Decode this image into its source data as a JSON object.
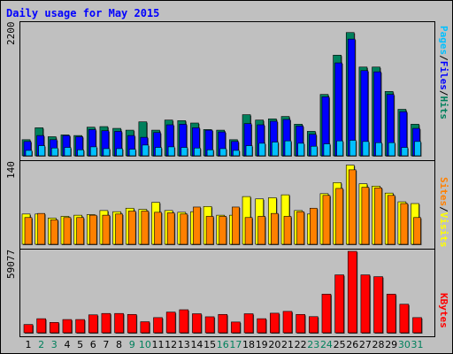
{
  "title": "Daily usage for May 2015",
  "colors": {
    "hits": "#00805c",
    "files": "#0000ff",
    "pages": "#00c0ff",
    "visits": "#ffff00",
    "sites": "#ff8000",
    "kbytes": "#ff0000",
    "weekday_label": "#000000",
    "weekend_label": "#00805c",
    "background": "#c0c0c0"
  },
  "labels": {
    "top_max": "2200",
    "mid_max": "140",
    "bottom_max": "59077",
    "right_top": [
      "Pages",
      "/",
      "Files",
      "/",
      "Hits"
    ],
    "right_mid": [
      "Sites",
      "/",
      "Visits"
    ],
    "right_bottom": [
      "KBytes"
    ]
  },
  "chart_data": [
    {
      "type": "bar",
      "panel": "hits-files-pages",
      "categories": [
        "1",
        "2",
        "3",
        "4",
        "5",
        "6",
        "7",
        "8",
        "9",
        "10",
        "11",
        "12",
        "13",
        "14",
        "15",
        "16",
        "17",
        "18",
        "19",
        "20",
        "21",
        "22",
        "23",
        "24",
        "25",
        "26",
        "27",
        "28",
        "29",
        "30",
        "31"
      ],
      "weekend_days": [
        2,
        3,
        9,
        10,
        16,
        17,
        23,
        24,
        30,
        31
      ],
      "ylim": [
        0,
        2200
      ],
      "series": [
        {
          "name": "Hits",
          "values": [
            270,
            470,
            320,
            350,
            340,
            480,
            490,
            460,
            430,
            570,
            430,
            600,
            590,
            550,
            440,
            430,
            270,
            690,
            600,
            620,
            660,
            530,
            410,
            1030,
            1690,
            2070,
            1490,
            1490,
            1080,
            780,
            530
          ]
        },
        {
          "name": "Files",
          "values": [
            240,
            340,
            270,
            340,
            320,
            440,
            420,
            410,
            340,
            310,
            390,
            520,
            530,
            470,
            430,
            400,
            240,
            540,
            520,
            580,
            610,
            500,
            360,
            990,
            1560,
            1960,
            1430,
            1410,
            1030,
            740,
            460
          ]
        },
        {
          "name": "Pages",
          "values": [
            90,
            170,
            130,
            140,
            100,
            150,
            120,
            120,
            110,
            180,
            140,
            150,
            140,
            130,
            100,
            120,
            90,
            170,
            210,
            230,
            250,
            210,
            160,
            200,
            250,
            260,
            240,
            220,
            220,
            140,
            240
          ]
        }
      ]
    },
    {
      "type": "bar",
      "panel": "visits-sites",
      "categories": [
        "1",
        "2",
        "3",
        "4",
        "5",
        "6",
        "7",
        "8",
        "9",
        "10",
        "11",
        "12",
        "13",
        "14",
        "15",
        "16",
        "17",
        "18",
        "19",
        "20",
        "21",
        "22",
        "23",
        "24",
        "25",
        "26",
        "27",
        "28",
        "29",
        "30",
        "31"
      ],
      "ylim": [
        0,
        140
      ],
      "series": [
        {
          "name": "Visits",
          "values": [
            52,
            52,
            45,
            48,
            50,
            51,
            58,
            56,
            62,
            60,
            72,
            58,
            55,
            56,
            65,
            50,
            50,
            82,
            78,
            80,
            85,
            58,
            52,
            87,
            106,
            136,
            104,
            100,
            88,
            73,
            70
          ]
        },
        {
          "name": "Sites",
          "values": [
            46,
            53,
            42,
            46,
            46,
            50,
            50,
            52,
            57,
            57,
            55,
            54,
            52,
            64,
            48,
            48,
            64,
            46,
            48,
            53,
            48,
            56,
            62,
            84,
            96,
            128,
            98,
            97,
            84,
            70,
            46
          ]
        }
      ]
    },
    {
      "type": "bar",
      "panel": "kbytes",
      "categories": [
        "1",
        "2",
        "3",
        "4",
        "5",
        "6",
        "7",
        "8",
        "9",
        "10",
        "11",
        "12",
        "13",
        "14",
        "15",
        "16",
        "17",
        "18",
        "19",
        "20",
        "21",
        "22",
        "23",
        "24",
        "25",
        "26",
        "27",
        "28",
        "29",
        "30",
        "31"
      ],
      "ylim": [
        0,
        59077
      ],
      "series": [
        {
          "name": "KBytes",
          "values": [
            6000,
            10200,
            7500,
            9600,
            9600,
            13000,
            14000,
            14000,
            13300,
            8000,
            11000,
            15000,
            16700,
            13800,
            11600,
            13300,
            7800,
            13800,
            10200,
            14200,
            15500,
            13300,
            11700,
            28000,
            42000,
            59077,
            42000,
            40700,
            28000,
            20700,
            11000
          ]
        }
      ]
    }
  ]
}
